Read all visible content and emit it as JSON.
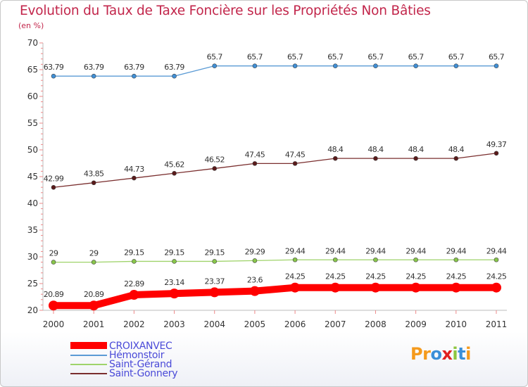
{
  "title": "Evolution du Taux de Taxe Foncière sur les Propriétés Non Bâties",
  "unit_label": "(en %)",
  "logo": {
    "text": "Proxiti",
    "letters": [
      {
        "ch": "P",
        "color": "#f59a1c"
      },
      {
        "ch": "r",
        "color": "#f59a1c"
      },
      {
        "ch": "o",
        "color": "#3a8fd8"
      },
      {
        "ch": "x",
        "color": "#e02020"
      },
      {
        "ch": "i",
        "color": "#8dc63f"
      },
      {
        "ch": "t",
        "color": "#3a8fd8"
      },
      {
        "ch": "i",
        "color": "#f59a1c"
      }
    ]
  },
  "chart_data": {
    "type": "line",
    "title": "Evolution du Taux de Taxe Foncière sur les Propriétés Non Bâties",
    "ylabel": "(en %)",
    "xlabel": "",
    "ylim": [
      20,
      70
    ],
    "yticks": [
      20,
      25,
      30,
      35,
      40,
      45,
      50,
      55,
      60,
      65,
      70
    ],
    "grid": false,
    "legend_position": "bottom-left",
    "categories": [
      "2000",
      "2001",
      "2002",
      "2003",
      "2004",
      "2005",
      "2006",
      "2007",
      "2008",
      "2009",
      "2010",
      "2011"
    ],
    "series": [
      {
        "name": "Hémonstoir",
        "color": "#5b9bd5",
        "marker_color": "#3f8fd6",
        "width": "thin",
        "values": [
          63.79,
          63.79,
          63.79,
          63.79,
          65.7,
          65.7,
          65.7,
          65.7,
          65.7,
          65.7,
          65.7,
          65.7
        ],
        "labels": [
          "63.79",
          "63.79",
          "63.79",
          "63.79",
          "65.7",
          "65.7",
          "65.7",
          "65.7",
          "65.7",
          "65.7",
          "65.7",
          "65.7"
        ]
      },
      {
        "name": "Saint-Gonnery",
        "color": "#7a2e2e",
        "marker_color": "#5a1a1a",
        "width": "thin",
        "values": [
          42.99,
          43.85,
          44.73,
          45.62,
          46.52,
          47.45,
          47.45,
          48.4,
          48.4,
          48.4,
          48.4,
          49.37
        ],
        "labels": [
          "42.99",
          "43.85",
          "44.73",
          "45.62",
          "46.52",
          "47.45",
          "47.45",
          "48.4",
          "48.4",
          "48.4",
          "48.4",
          "49.37"
        ]
      },
      {
        "name": "Saint-Gérand",
        "color": "#9fd36a",
        "marker_color": "#88c64a",
        "width": "thin",
        "values": [
          29,
          29,
          29.15,
          29.15,
          29.15,
          29.29,
          29.44,
          29.44,
          29.44,
          29.44,
          29.44,
          29.44
        ],
        "labels": [
          "29",
          "29",
          "29.15",
          "29.15",
          "29.15",
          "29.29",
          "29.44",
          "29.44",
          "29.44",
          "29.44",
          "29.44",
          "29.44"
        ]
      },
      {
        "name": "CROIXANVEC",
        "color": "#ff0000",
        "marker_color": "#ff0000",
        "width": "thick",
        "values": [
          20.89,
          20.89,
          22.89,
          23.14,
          23.37,
          23.6,
          24.25,
          24.25,
          24.25,
          24.25,
          24.25,
          24.25
        ],
        "labels": [
          "20.89",
          "20.89",
          "22.89",
          "23.14",
          "23.37",
          "23.6",
          "24.25",
          "24.25",
          "24.25",
          "24.25",
          "24.25",
          "24.25"
        ]
      }
    ],
    "legend": [
      {
        "name": "CROIXANVEC",
        "color": "#ff0000",
        "width": "thick"
      },
      {
        "name": "Hémonstoir",
        "color": "#5b9bd5",
        "width": "thin"
      },
      {
        "name": "Saint-Gérand",
        "color": "#9fd36a",
        "width": "thin"
      },
      {
        "name": "Saint-Gonnery",
        "color": "#7a2e2e",
        "width": "thin"
      }
    ]
  }
}
